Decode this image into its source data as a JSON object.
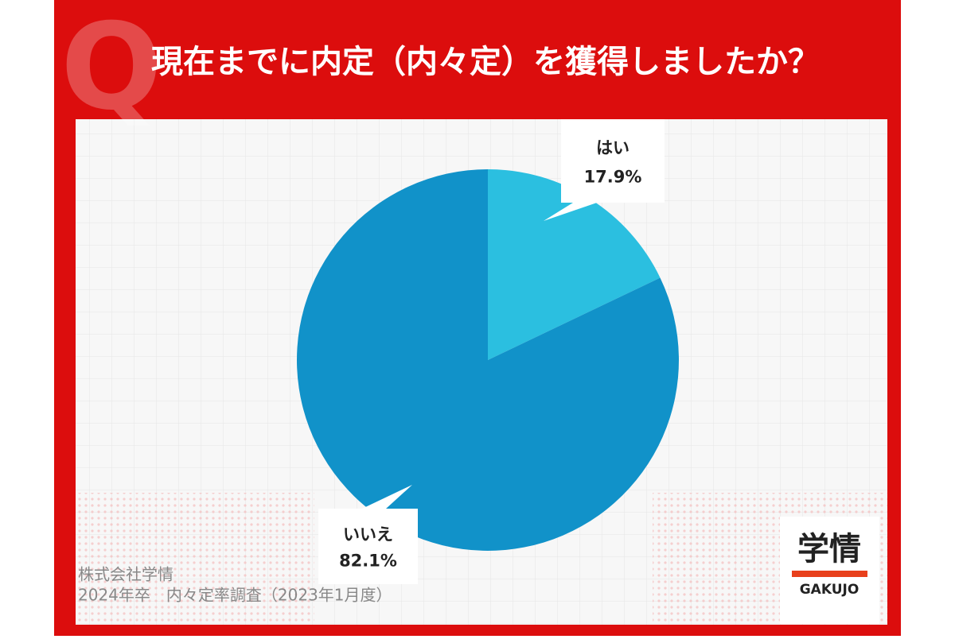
{
  "chart_data": {
    "type": "pie",
    "badge": "Q",
    "title": "現在までに内定（内々定）を獲得しましたか？",
    "categories": [
      "はい",
      "いいえ"
    ],
    "values": [
      17.9,
      82.1
    ],
    "value_labels": [
      "17.9%",
      "82.1%"
    ],
    "colors": [
      "#2bbfe0",
      "#1192c9"
    ],
    "source": [
      "株式会社学情",
      "2024年卒　内々定率調査（2023年1月度）"
    ],
    "logo": {
      "name": "学情",
      "latin": "GAKUJO"
    }
  }
}
